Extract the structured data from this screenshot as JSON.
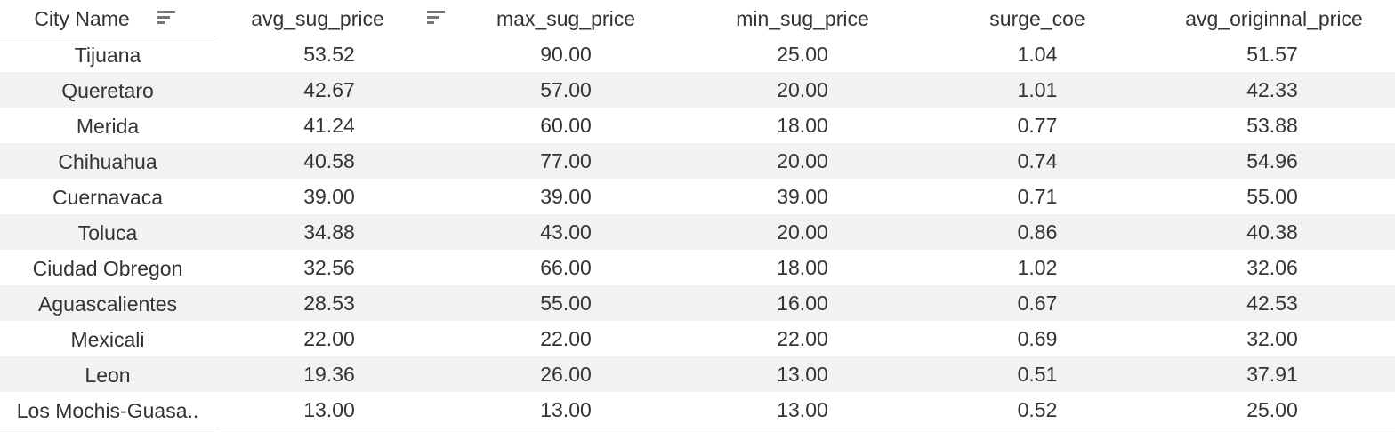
{
  "table": {
    "columns": [
      "City Name",
      "avg_sug_price",
      "max_sug_price",
      "min_sug_price",
      "surge_coe",
      "avg_originnal_price"
    ],
    "sort_icons": [
      "sort-icon",
      "sort-icon"
    ],
    "rows": [
      [
        "Tijuana",
        "53.52",
        "90.00",
        "25.00",
        "1.04",
        "51.57"
      ],
      [
        "Queretaro",
        "42.67",
        "57.00",
        "20.00",
        "1.01",
        "42.33"
      ],
      [
        "Merida",
        "41.24",
        "60.00",
        "18.00",
        "0.77",
        "53.88"
      ],
      [
        "Chihuahua",
        "40.58",
        "77.00",
        "20.00",
        "0.74",
        "54.96"
      ],
      [
        "Cuernavaca",
        "39.00",
        "39.00",
        "39.00",
        "0.71",
        "55.00"
      ],
      [
        "Toluca",
        "34.88",
        "43.00",
        "20.00",
        "0.86",
        "40.38"
      ],
      [
        "Ciudad Obregon",
        "32.56",
        "66.00",
        "18.00",
        "1.02",
        "32.06"
      ],
      [
        "Aguascalientes",
        "28.53",
        "55.00",
        "16.00",
        "0.67",
        "42.53"
      ],
      [
        "Mexicali",
        "22.00",
        "22.00",
        "22.00",
        "0.69",
        "32.00"
      ],
      [
        "Leon",
        "19.36",
        "26.00",
        "13.00",
        "0.51",
        "37.91"
      ],
      [
        "Los Mochis-Guasa..",
        "13.00",
        "13.00",
        "13.00",
        "0.52",
        "25.00"
      ]
    ]
  },
  "colors": {
    "text": "#333333",
    "band": "#f2f2f2",
    "sort_icon": "#777777",
    "rule": "#bdbdbd"
  }
}
